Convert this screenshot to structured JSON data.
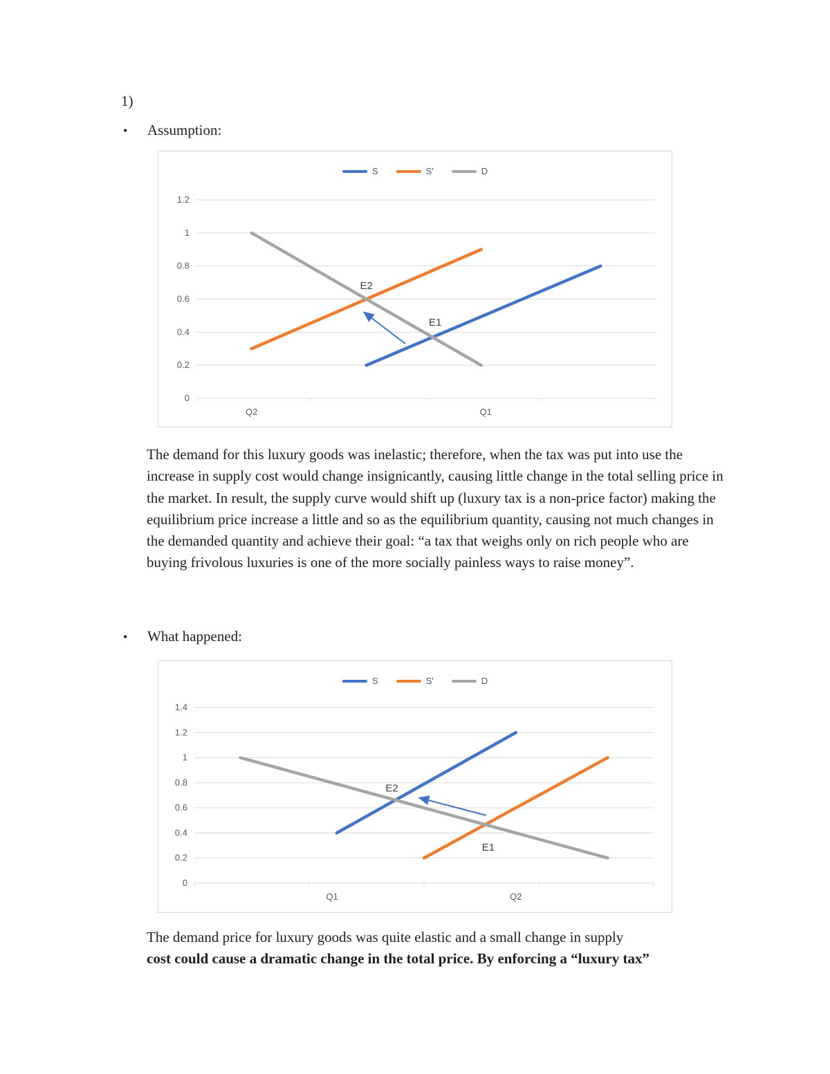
{
  "document": {
    "list_number": "1)",
    "bullet_char": "•",
    "sections": [
      {
        "heading": "Assumption:",
        "paragraph": "The demand for this luxury goods was inelastic; therefore, when the tax was put into use the increase in supply cost would change insignicantly, causing little change in the total selling price in the market. In result, the supply curve would shift up (luxury tax is a non-price factor) making the equilibrium price increase a little and so as the equilibrium quantity, causing not much changes in the demanded quantity and achieve their goal: “a tax that weighs only on rich people who are buying frivolous luxuries is one of the more socially painless ways to raise money”."
      },
      {
        "heading": "What happened:",
        "paragraph_line1": "The demand price for luxury goods was quite elastic and a small change in supply",
        "paragraph_line2": "cost could cause a dramatic change in the total price. By enforcing a “luxury tax”"
      }
    ]
  },
  "colors": {
    "series_s": "#4472C4",
    "series_s_prime": "#ED7D31",
    "series_d": "#A5A5A5",
    "gridline": "#D9D9D9",
    "axis_text": "#595959"
  },
  "chart_data": [
    {
      "type": "line",
      "title": "",
      "legend": [
        {
          "label": "S",
          "color": "#4472C4"
        },
        {
          "label": "S'",
          "color": "#ED7D31"
        },
        {
          "label": "D",
          "color": "#A5A5A5"
        }
      ],
      "ylim": [
        0,
        1.2
      ],
      "y_ticks": [
        "1.2",
        "1",
        "0.8",
        "0.6",
        "0.4",
        "0.2",
        "0"
      ],
      "x_axis_labels": [
        {
          "text": "Q2",
          "x": 0.12
        },
        {
          "text": "Q1",
          "x": 0.63
        }
      ],
      "series": [
        {
          "name": "S",
          "color": "#4472C4",
          "points": [
            [
              0.37,
              0.2
            ],
            [
              0.88,
              0.8
            ]
          ]
        },
        {
          "name": "S'",
          "color": "#ED7D31",
          "points": [
            [
              0.12,
              0.3
            ],
            [
              0.62,
              0.9
            ]
          ]
        },
        {
          "name": "D",
          "color": "#A5A5A5",
          "points": [
            [
              0.12,
              1.0
            ],
            [
              0.62,
              0.2
            ]
          ]
        }
      ],
      "annotations": [
        {
          "text": "E2",
          "x": 0.37,
          "y": 0.66
        },
        {
          "text": "E1",
          "x": 0.52,
          "y": 0.44
        }
      ],
      "arrow": {
        "color": "#4472C4",
        "from": [
          0.455,
          0.33
        ],
        "to": [
          0.365,
          0.52
        ]
      },
      "equilibrium_shift": "E1 to E2",
      "grid": true,
      "legend_position": "top"
    },
    {
      "type": "line",
      "title": "",
      "legend": [
        {
          "label": "S",
          "color": "#4472C4"
        },
        {
          "label": "S'",
          "color": "#ED7D31"
        },
        {
          "label": "D",
          "color": "#A5A5A5"
        }
      ],
      "ylim": [
        0,
        1.4
      ],
      "y_ticks": [
        "1.4",
        "1.2",
        "1",
        "0.8",
        "0.6",
        "0.4",
        "0.2",
        "0"
      ],
      "x_axis_labels": [
        {
          "text": "Q1",
          "x": 0.3
        },
        {
          "text": "Q2",
          "x": 0.7
        }
      ],
      "series": [
        {
          "name": "S",
          "color": "#4472C4",
          "points": [
            [
              0.31,
              0.4
            ],
            [
              0.7,
              1.2
            ]
          ]
        },
        {
          "name": "S'",
          "color": "#ED7D31",
          "points": [
            [
              0.5,
              0.2
            ],
            [
              0.9,
              1.0
            ]
          ]
        },
        {
          "name": "D",
          "color": "#A5A5A5",
          "points": [
            [
              0.1,
              1.0
            ],
            [
              0.9,
              0.2
            ]
          ]
        }
      ],
      "annotations": [
        {
          "text": "E2",
          "x": 0.43,
          "y": 0.73
        },
        {
          "text": "E1",
          "x": 0.64,
          "y": 0.26
        }
      ],
      "arrow": {
        "color": "#4472C4",
        "from": [
          0.635,
          0.54
        ],
        "to": [
          0.49,
          0.68
        ]
      },
      "equilibrium_shift": "E1 to E2",
      "grid": true,
      "legend_position": "top"
    }
  ]
}
